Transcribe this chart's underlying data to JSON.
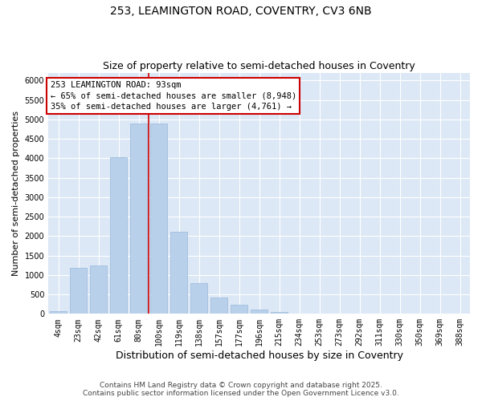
{
  "title_line1": "253, LEAMINGTON ROAD, COVENTRY, CV3 6NB",
  "title_line2": "Size of property relative to semi-detached houses in Coventry",
  "xlabel": "Distribution of semi-detached houses by size in Coventry",
  "ylabel": "Number of semi-detached properties",
  "categories": [
    "4sqm",
    "23sqm",
    "42sqm",
    "61sqm",
    "80sqm",
    "100sqm",
    "119sqm",
    "138sqm",
    "157sqm",
    "177sqm",
    "196sqm",
    "215sqm",
    "234sqm",
    "253sqm",
    "273sqm",
    "292sqm",
    "311sqm",
    "330sqm",
    "350sqm",
    "369sqm",
    "388sqm"
  ],
  "values": [
    60,
    1180,
    1250,
    4020,
    4900,
    4900,
    2120,
    800,
    420,
    230,
    105,
    50,
    0,
    0,
    0,
    0,
    0,
    0,
    0,
    0,
    0
  ],
  "bar_color": "#b8d0ea",
  "bar_edge_color": "#9ab8dc",
  "vline_color": "#cc0000",
  "vline_position": 4.5,
  "annotation_text": "253 LEAMINGTON ROAD: 93sqm\n← 65% of semi-detached houses are smaller (8,948)\n35% of semi-detached houses are larger (4,761) →",
  "annotation_box_edge_color": "#cc0000",
  "ylim": [
    0,
    6200
  ],
  "yticks": [
    0,
    500,
    1000,
    1500,
    2000,
    2500,
    3000,
    3500,
    4000,
    4500,
    5000,
    5500,
    6000
  ],
  "background_color": "#dce8f5",
  "grid_color": "#ffffff",
  "footer_line1": "Contains HM Land Registry data © Crown copyright and database right 2025.",
  "footer_line2": "Contains public sector information licensed under the Open Government Licence v3.0.",
  "title_fontsize": 10,
  "subtitle_fontsize": 9,
  "ylabel_fontsize": 8,
  "xlabel_fontsize": 9,
  "tick_fontsize": 7,
  "annotation_fontsize": 7.5,
  "footer_fontsize": 6.5
}
